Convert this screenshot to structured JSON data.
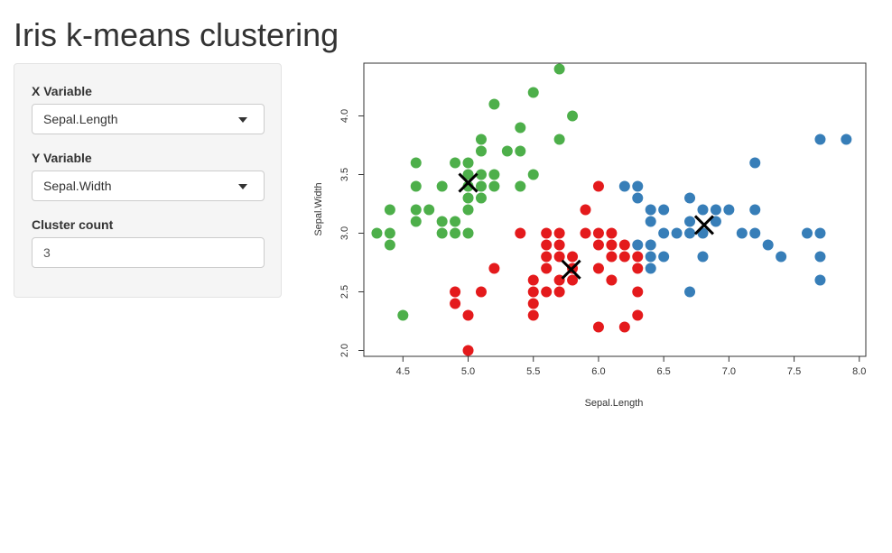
{
  "page": {
    "title": "Iris k-means clustering"
  },
  "sidebar": {
    "x_variable": {
      "label": "X Variable",
      "value": "Sepal.Length",
      "icon": "chevron-down-icon"
    },
    "y_variable": {
      "label": "Y Variable",
      "value": "Sepal.Width",
      "icon": "chevron-down-icon"
    },
    "cluster_count": {
      "label": "Cluster count",
      "value": "3"
    }
  },
  "chart_data": {
    "type": "scatter",
    "xlabel": "Sepal.Length",
    "ylabel": "Sepal.Width",
    "xlim": [
      4.2,
      8.05
    ],
    "ylim": [
      1.95,
      4.45
    ],
    "x_ticks": [
      4.5,
      5.0,
      5.5,
      6.0,
      6.5,
      7.0,
      7.5,
      8.0
    ],
    "x_tick_labels": [
      "4.5",
      "5.0",
      "5.5",
      "6.0",
      "6.5",
      "7.0",
      "7.5",
      "8.0"
    ],
    "y_ticks": [
      2.0,
      2.5,
      3.0,
      3.5,
      4.0
    ],
    "y_tick_labels": [
      "2.0",
      "2.5",
      "3.0",
      "3.5",
      "4.0"
    ],
    "grid": false,
    "series": [
      {
        "color": "#4daf4a",
        "points": [
          [
            4.3,
            3.0
          ],
          [
            4.4,
            2.9
          ],
          [
            4.4,
            3.0
          ],
          [
            4.4,
            3.2
          ],
          [
            4.5,
            2.3
          ],
          [
            4.6,
            3.1
          ],
          [
            4.6,
            3.2
          ],
          [
            4.6,
            3.4
          ],
          [
            4.6,
            3.6
          ],
          [
            4.7,
            3.2
          ],
          [
            4.8,
            3.0
          ],
          [
            4.8,
            3.1
          ],
          [
            4.8,
            3.4
          ],
          [
            4.9,
            3.0
          ],
          [
            4.9,
            3.1
          ],
          [
            4.9,
            3.6
          ],
          [
            5.0,
            3.0
          ],
          [
            5.0,
            3.2
          ],
          [
            5.0,
            3.3
          ],
          [
            5.0,
            3.4
          ],
          [
            5.0,
            3.5
          ],
          [
            5.0,
            3.6
          ],
          [
            5.1,
            3.3
          ],
          [
            5.1,
            3.4
          ],
          [
            5.1,
            3.5
          ],
          [
            5.1,
            3.7
          ],
          [
            5.1,
            3.8
          ],
          [
            5.2,
            3.4
          ],
          [
            5.2,
            3.5
          ],
          [
            5.2,
            4.1
          ],
          [
            5.3,
            3.7
          ],
          [
            5.4,
            3.4
          ],
          [
            5.4,
            3.7
          ],
          [
            5.4,
            3.9
          ],
          [
            5.5,
            3.5
          ],
          [
            5.5,
            4.2
          ],
          [
            5.7,
            3.8
          ],
          [
            5.7,
            4.4
          ],
          [
            5.8,
            4.0
          ]
        ]
      },
      {
        "color": "#e41a1c",
        "points": [
          [
            4.9,
            2.4
          ],
          [
            4.9,
            2.5
          ],
          [
            5.0,
            2.0
          ],
          [
            5.0,
            2.3
          ],
          [
            5.1,
            2.5
          ],
          [
            5.2,
            2.7
          ],
          [
            5.4,
            3.0
          ],
          [
            5.5,
            2.3
          ],
          [
            5.5,
            2.4
          ],
          [
            5.5,
            2.5
          ],
          [
            5.5,
            2.6
          ],
          [
            5.6,
            2.5
          ],
          [
            5.6,
            2.7
          ],
          [
            5.6,
            2.8
          ],
          [
            5.6,
            2.9
          ],
          [
            5.6,
            3.0
          ],
          [
            5.7,
            2.5
          ],
          [
            5.7,
            2.6
          ],
          [
            5.7,
            2.8
          ],
          [
            5.7,
            2.9
          ],
          [
            5.7,
            3.0
          ],
          [
            5.8,
            2.6
          ],
          [
            5.8,
            2.7
          ],
          [
            5.8,
            2.8
          ],
          [
            5.9,
            3.0
          ],
          [
            5.9,
            3.2
          ],
          [
            6.0,
            2.2
          ],
          [
            6.0,
            2.7
          ],
          [
            6.0,
            2.9
          ],
          [
            6.0,
            3.0
          ],
          [
            6.0,
            3.4
          ],
          [
            6.1,
            2.6
          ],
          [
            6.1,
            2.8
          ],
          [
            6.1,
            2.9
          ],
          [
            6.1,
            3.0
          ],
          [
            6.2,
            2.2
          ],
          [
            6.2,
            2.8
          ],
          [
            6.2,
            2.9
          ],
          [
            6.3,
            2.3
          ],
          [
            6.3,
            2.5
          ],
          [
            6.3,
            2.7
          ],
          [
            6.3,
            2.8
          ]
        ]
      },
      {
        "color": "#377eb8",
        "points": [
          [
            6.2,
            3.4
          ],
          [
            6.3,
            2.9
          ],
          [
            6.3,
            3.3
          ],
          [
            6.3,
            3.4
          ],
          [
            6.4,
            2.7
          ],
          [
            6.4,
            2.8
          ],
          [
            6.4,
            2.9
          ],
          [
            6.4,
            3.1
          ],
          [
            6.4,
            3.2
          ],
          [
            6.5,
            2.8
          ],
          [
            6.5,
            3.0
          ],
          [
            6.5,
            3.2
          ],
          [
            6.6,
            3.0
          ],
          [
            6.7,
            2.5
          ],
          [
            6.7,
            3.0
          ],
          [
            6.7,
            3.1
          ],
          [
            6.7,
            3.3
          ],
          [
            6.8,
            2.8
          ],
          [
            6.8,
            3.0
          ],
          [
            6.8,
            3.2
          ],
          [
            6.9,
            3.1
          ],
          [
            6.9,
            3.2
          ],
          [
            7.0,
            3.2
          ],
          [
            7.1,
            3.0
          ],
          [
            7.2,
            3.0
          ],
          [
            7.2,
            3.2
          ],
          [
            7.2,
            3.6
          ],
          [
            7.3,
            2.9
          ],
          [
            7.4,
            2.8
          ],
          [
            7.6,
            3.0
          ],
          [
            7.7,
            2.6
          ],
          [
            7.7,
            2.8
          ],
          [
            7.7,
            3.0
          ],
          [
            7.7,
            3.8
          ],
          [
            7.9,
            3.8
          ]
        ]
      }
    ],
    "centers": [
      [
        5.0,
        3.43
      ],
      [
        5.79,
        2.69
      ],
      [
        6.81,
        3.07
      ]
    ]
  }
}
